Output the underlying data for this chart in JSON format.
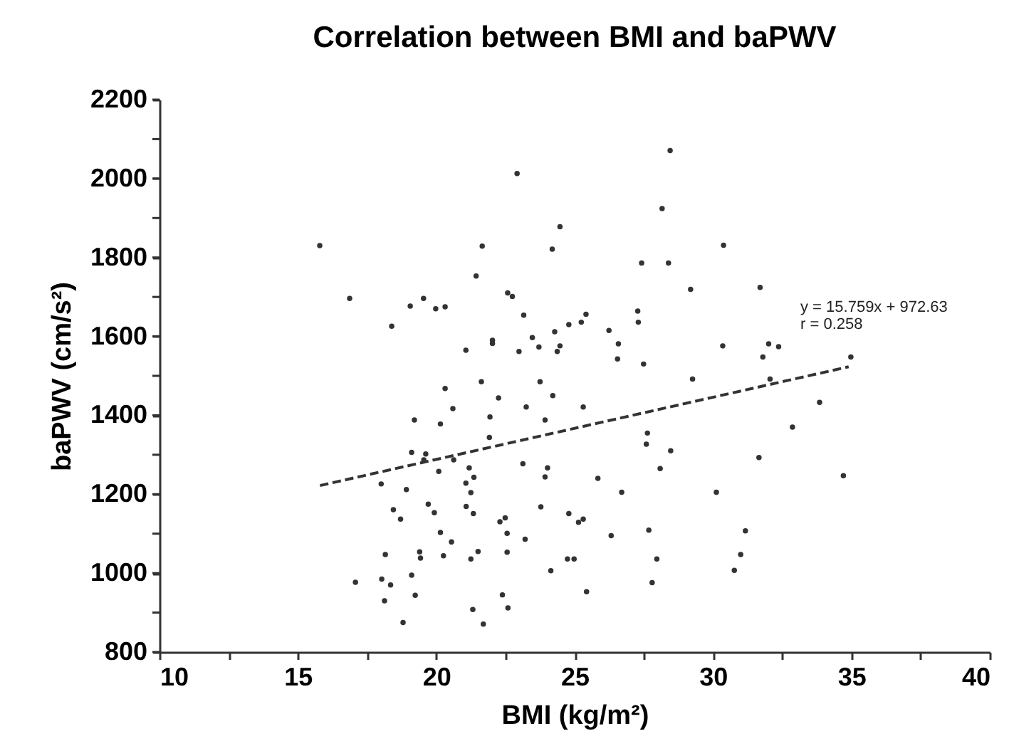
{
  "chart_data": {
    "type": "scatter",
    "title": "Correlation between BMI and baPWV",
    "xlabel": "BMI (kg/m²)",
    "ylabel": "baPWV (cm/s²)",
    "xlim": [
      10,
      40
    ],
    "xticks": [
      10,
      {
        "value": 12.5,
        "label": null
      },
      15,
      {
        "value": 17.5,
        "label": null
      },
      20,
      {
        "value": 22.5,
        "label": null
      },
      25,
      {
        "value": 27.5,
        "label": null
      },
      30,
      {
        "value": 32.5,
        "label": null
      },
      35,
      {
        "value": 37.5,
        "label": null
      },
      40
    ],
    "ylim": [
      800,
      2200
    ],
    "yticks": [
      800,
      {
        "value": 900,
        "label": null
      },
      1000,
      {
        "value": 1100,
        "label": null
      },
      1200,
      {
        "value": 1300,
        "label": null
      },
      1400,
      {
        "value": 1500,
        "label": null
      },
      1600,
      {
        "value": 1700,
        "label": null
      },
      1800,
      {
        "value": 1900,
        "label": null
      },
      2000,
      {
        "value": 2100,
        "label": null
      },
      2200
    ],
    "marker": "circle",
    "grid": false,
    "series": [
      {
        "color": "#333333",
        "x": [
          15.79,
          16.87,
          18.39,
          19.06,
          19.54,
          19.98,
          20.32,
          21.07,
          21.44,
          21.66,
          22.03,
          22.03,
          22.58,
          22.75,
          22.92,
          22.99,
          23.16,
          23.47,
          23.71,
          24.19,
          24.28,
          24.47,
          24.47,
          24.37,
          24.79,
          28.45,
          28.16,
          30.38,
          27.42,
          28.39,
          29.19,
          31.7,
          27.28,
          27.3,
          25.41,
          25.24,
          26.24,
          26.58,
          26.55,
          27.49,
          30.35,
          32.01,
          32.37,
          31.8,
          34.98,
          29.26,
          32.06,
          25.31,
          33.85,
          32.87,
          27.63,
          27.59,
          28.47,
          31.66,
          28.09,
          34.71,
          25.84,
          26.7,
          30.12,
          24.79,
          25.14,
          25.31,
          26.32,
          27.68,
          31.17,
          24.74,
          24.98,
          27.97,
          31.0,
          30.77,
          27.8,
          25.43,
          21.63,
          23.75,
          20.32,
          24.21,
          22.25,
          20.6,
          23.25,
          19.21,
          21.94,
          23.93,
          20.15,
          21.92,
          19.11,
          19.62,
          20.63,
          19.55,
          21.19,
          23.13,
          24.02,
          20.09,
          21.36,
          23.93,
          18.01,
          21.07,
          21.25,
          18.92,
          19.71,
          21.08,
          23.78,
          18.45,
          19.93,
          21.34,
          18.71,
          22.49,
          22.3,
          20.15,
          22.56,
          23.21,
          20.55,
          18.16,
          19.4,
          19.43,
          20.26,
          21.51,
          21.25,
          22.56,
          24.14,
          17.08,
          18.03,
          18.35,
          19.11,
          18.13,
          19.24,
          22.39,
          22.59,
          21.32,
          18.8,
          21.7
        ],
        "values": [
          1830,
          1696,
          1626,
          1677,
          1696,
          1670,
          1675,
          1565,
          1753,
          1829,
          1590,
          1582,
          1710,
          1701,
          2013,
          1562,
          1654,
          1597,
          1573,
          1821,
          1612,
          1878,
          1576,
          1562,
          1630,
          2071,
          1924,
          1831,
          1786,
          1786,
          1719,
          1724,
          1664,
          1636,
          1656,
          1636,
          1615,
          1581,
          1543,
          1530,
          1576,
          1581,
          1574,
          1548,
          1548,
          1492,
          1492,
          1421,
          1433,
          1370,
          1355,
          1327,
          1310,
          1293,
          1265,
          1247,
          1240,
          1205,
          1205,
          1151,
          1129,
          1137,
          1095,
          1109,
          1107,
          1036,
          1036,
          1036,
          1047,
          1007,
          976,
          953,
          1485,
          1485,
          1468,
          1450,
          1444,
          1417,
          1421,
          1388,
          1396,
          1388,
          1378,
          1344,
          1306,
          1302,
          1287,
          1287,
          1267,
          1277,
          1267,
          1258,
          1243,
          1244,
          1226,
          1228,
          1204,
          1212,
          1175,
          1169,
          1168,
          1161,
          1153,
          1151,
          1137,
          1140,
          1130,
          1103,
          1101,
          1086,
          1079,
          1047,
          1054,
          1038,
          1044,
          1055,
          1036,
          1053,
          1006,
          977,
          985,
          970,
          995,
          930,
          944,
          945,
          912,
          908,
          875,
          871
        ]
      },
      {
        "type": "line",
        "color": "#333333",
        "line_style": "dashed",
        "marker": "none",
        "x": [
          15.8,
          34.9
        ],
        "values": [
          1222,
          1523
        ]
      }
    ],
    "annotations": [
      "y = 15.759x + 972.63",
      "r = 0.258"
    ]
  }
}
